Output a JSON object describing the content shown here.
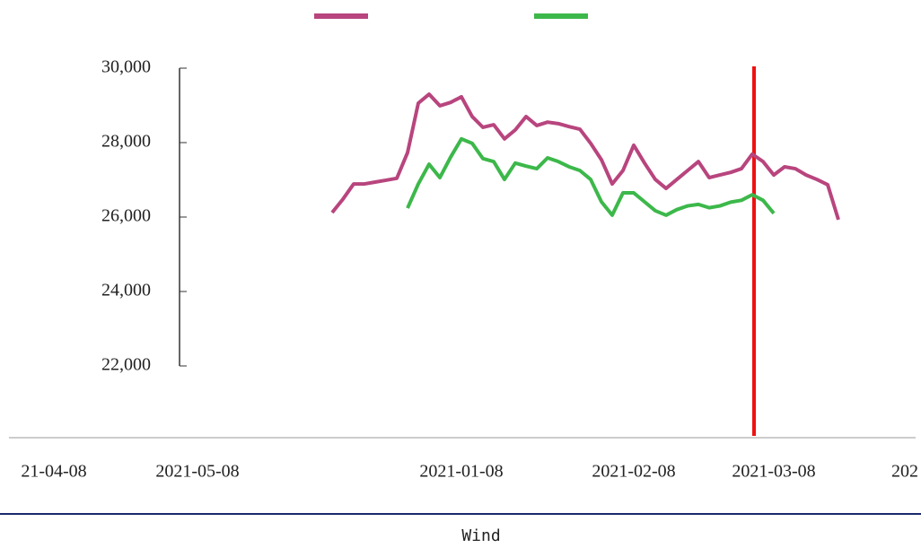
{
  "chart_data": {
    "type": "line",
    "categories": [
      null,
      null,
      null,
      null,
      null,
      null,
      null,
      null,
      null,
      null,
      null,
      null,
      "2021-01-08",
      null,
      null,
      null,
      null,
      null,
      null,
      null,
      null,
      null,
      null,
      null,
      null,
      null,
      null,
      null,
      "2021-02-08",
      null,
      null,
      null,
      null,
      null,
      null,
      null,
      null,
      null,
      null,
      null,
      null,
      "2021-03-08",
      null,
      null,
      null,
      null,
      null,
      null
    ],
    "series": [
      {
        "color": "#b8457e",
        "values": [
          26120,
          26480,
          26890,
          26890,
          26940,
          26990,
          27040,
          27730,
          29060,
          29300,
          28990,
          29080,
          29230,
          28700,
          28410,
          28480,
          28100,
          28340,
          28700,
          28460,
          28550,
          28510,
          28430,
          28360,
          27980,
          27540,
          26890,
          27250,
          27930,
          27450,
          27010,
          26770,
          27010,
          27250,
          27490,
          27060,
          27130,
          27200,
          27300,
          27690,
          27490,
          27130,
          27350,
          27300,
          27130,
          27010,
          26870,
          25930
        ]
      },
      {
        "color": "#3cb84a",
        "values": [
          null,
          null,
          null,
          null,
          null,
          null,
          null,
          26240,
          26890,
          27420,
          27060,
          27610,
          28100,
          27980,
          27570,
          27490,
          27010,
          27450,
          27370,
          27300,
          27590,
          27490,
          27350,
          27250,
          27010,
          26410,
          26050,
          26650,
          26650,
          26410,
          26170,
          26050,
          26200,
          26300,
          26340,
          26250,
          26300,
          26400,
          26450,
          26600,
          26450,
          26100,
          null,
          null,
          null,
          null,
          null,
          null
        ]
      }
    ],
    "ylim": [
      22000,
      30000
    ],
    "yticks": [
      {
        "value": 22000,
        "label": "22,000"
      },
      {
        "value": 24000,
        "label": "24,000"
      },
      {
        "value": 26000,
        "label": "26,000"
      },
      {
        "value": 28000,
        "label": "28,000"
      },
      {
        "value": 30000,
        "label": "30,000"
      }
    ],
    "fragment_labels": [
      "21-04-08",
      "2021-05-08",
      "202"
    ]
  },
  "footer": "Wind"
}
